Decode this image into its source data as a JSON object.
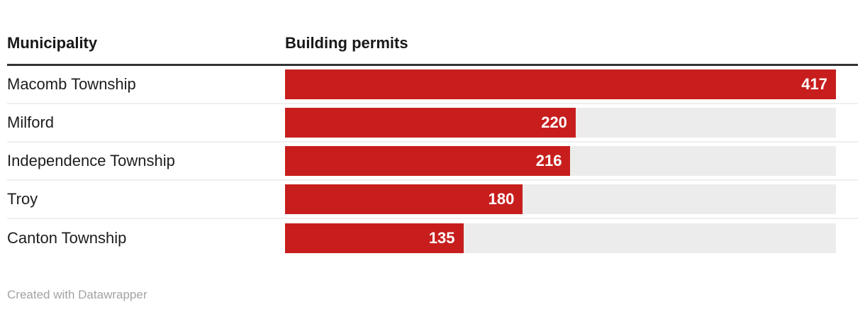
{
  "chart_data": {
    "type": "bar",
    "orientation": "horizontal",
    "title": "",
    "column_headers": [
      "Municipality",
      "Building permits"
    ],
    "categories": [
      "Macomb Township",
      "Milford",
      "Independence Township",
      "Troy",
      "Canton Township"
    ],
    "values": [
      417,
      220,
      216,
      180,
      135
    ],
    "max_value": 417,
    "value_label_position": "inside-end",
    "grid": false,
    "legend": false
  },
  "footer": {
    "credit": "Created with Datawrapper"
  },
  "colors": {
    "bar": "#c71e1d",
    "track": "#ececec",
    "header_rule": "#333333",
    "row_separator": "#efefef",
    "row_label_text": "#1d1d1d",
    "header_text": "#18181a",
    "value_label_text": "#ffffff",
    "credit_text": "#a3a3a3",
    "background": "#ffffff"
  }
}
